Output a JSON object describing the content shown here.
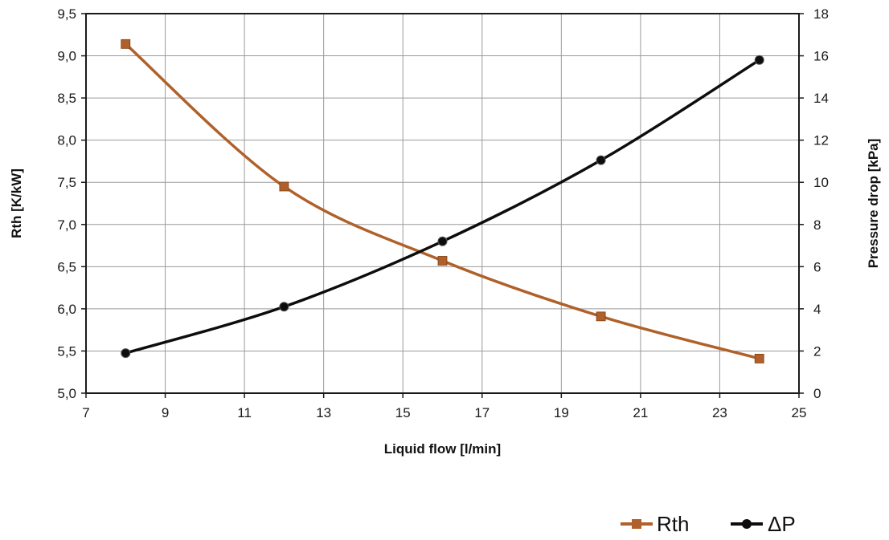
{
  "chart_data": {
    "type": "line",
    "xlabel": "Liquid flow [l/min]",
    "ylabel": "Rth [K/kW]",
    "y2label": "Pressure drop [kPa]",
    "xlim": [
      7,
      25
    ],
    "ylim": [
      5.0,
      9.5
    ],
    "y2lim": [
      0,
      18
    ],
    "x_ticks": [
      "7",
      "9",
      "11",
      "13",
      "15",
      "17",
      "19",
      "21",
      "23",
      "25"
    ],
    "y_ticks": [
      "5,0",
      "5,5",
      "6,0",
      "6,5",
      "7,0",
      "7,5",
      "8,0",
      "8,5",
      "9,0",
      "9,5"
    ],
    "y2_ticks": [
      "0",
      "2",
      "4",
      "6",
      "8",
      "10",
      "12",
      "14",
      "16",
      "18"
    ],
    "grid": true,
    "legend_position": "bottom-right",
    "series": [
      {
        "name": "Rth",
        "axis": "left",
        "color": "#b0612a",
        "marker": "square",
        "x": [
          8,
          12,
          16,
          20,
          24
        ],
        "y": [
          9.14,
          7.45,
          6.57,
          5.91,
          5.41
        ]
      },
      {
        "name": "ΔP",
        "axis": "right",
        "color": "#0d0d0d",
        "marker": "circle",
        "x": [
          8,
          12,
          16,
          20,
          24
        ],
        "y": [
          1.9,
          4.1,
          7.2,
          11.05,
          15.8
        ]
      }
    ]
  }
}
